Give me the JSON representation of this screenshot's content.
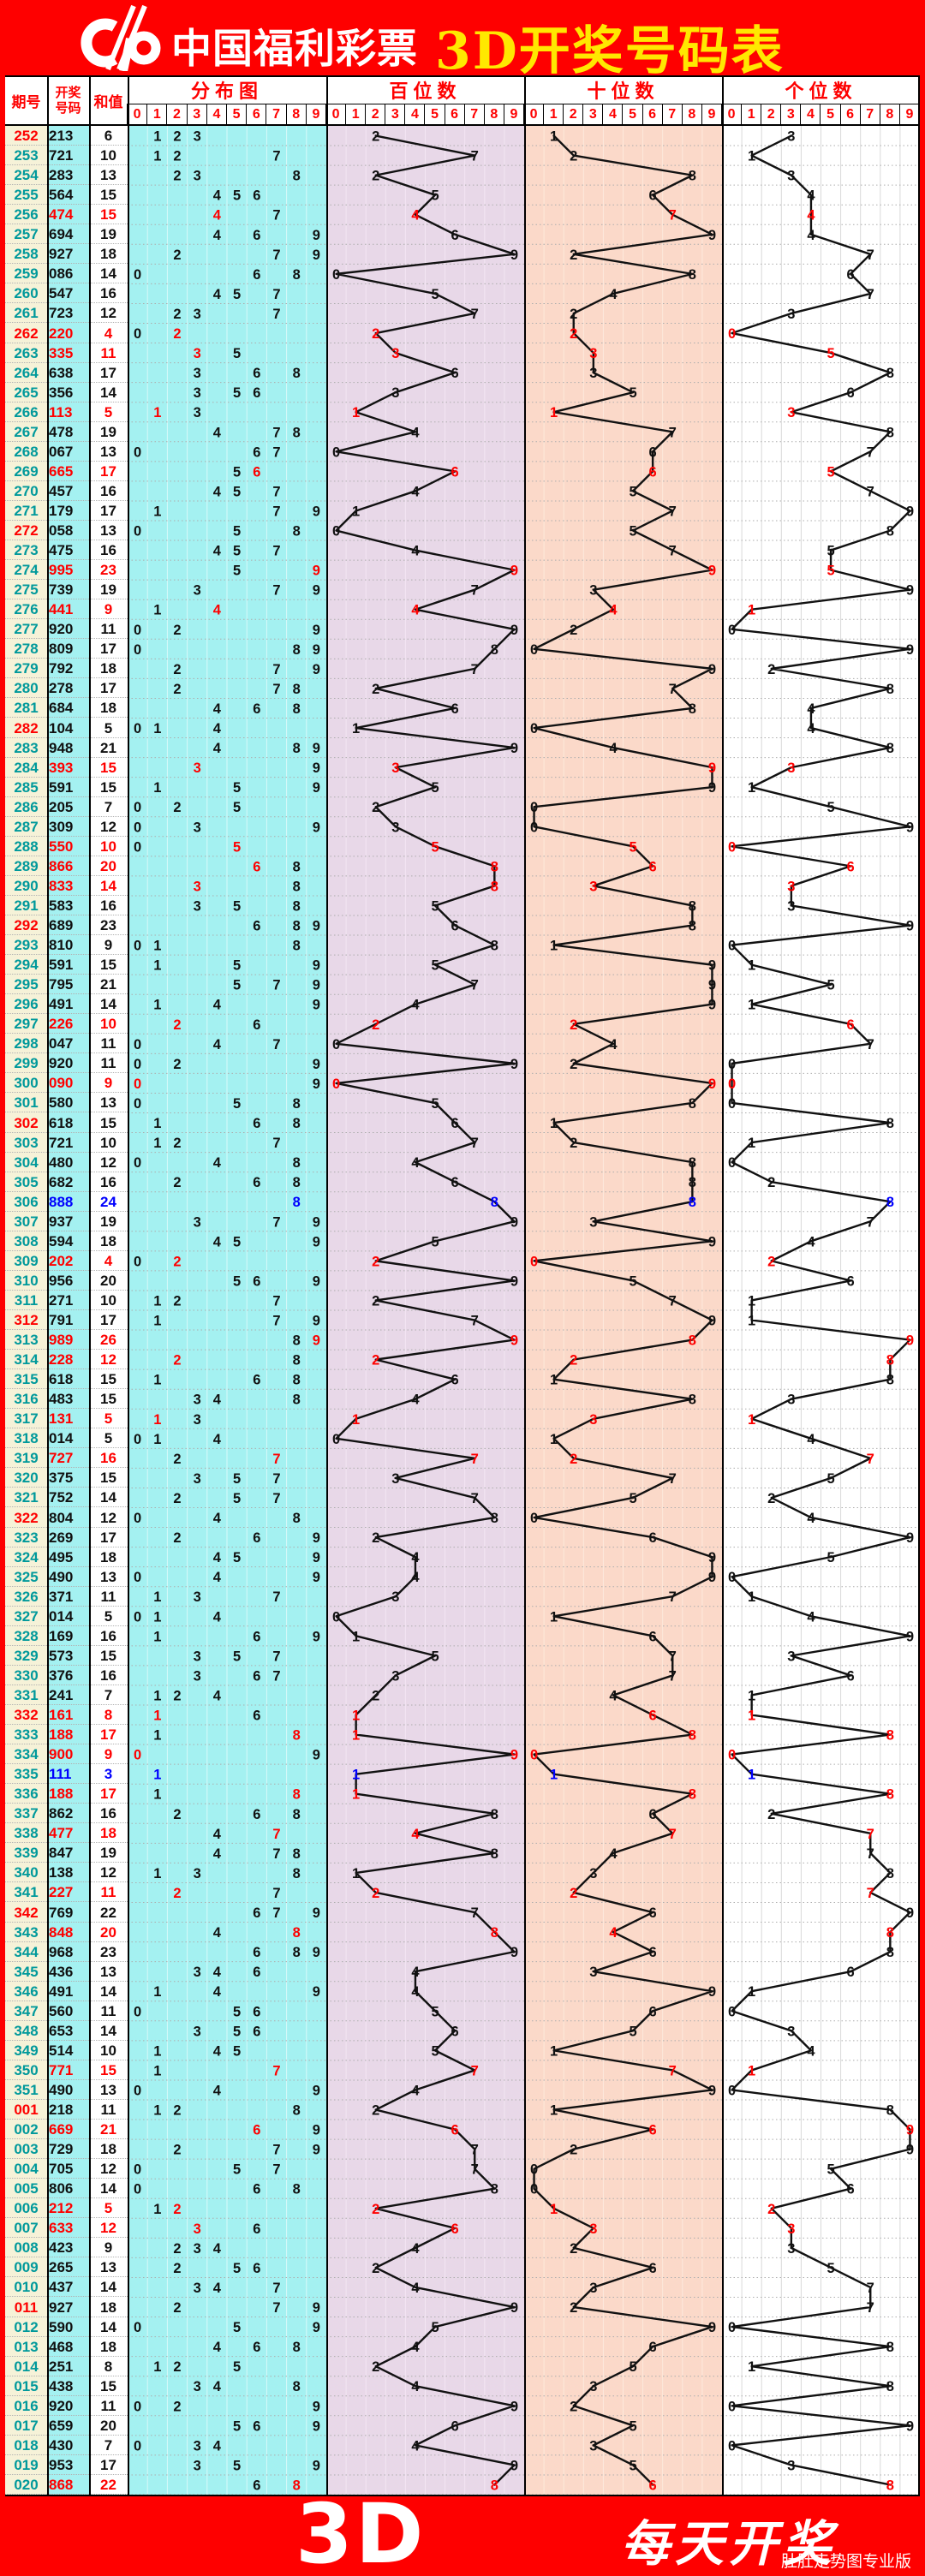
{
  "header": {
    "brand": "中国福利彩票",
    "title": "3D开奖号码表"
  },
  "table_header": {
    "period": "期号",
    "number": "开奖\n号码",
    "sum": "和值",
    "distribution": "分布图",
    "hundreds": "百位数",
    "tens": "十位数",
    "units": "个位数",
    "digit_scale": [
      "0",
      "1",
      "2",
      "3",
      "4",
      "5",
      "6",
      "7",
      "8",
      "9"
    ]
  },
  "footer": {
    "logo": "3D",
    "slogan": "每天开奖",
    "watermark": "肚肚走势图专业版"
  },
  "colors": {
    "frame_red": "#fe0000",
    "title_yellow": "#ffe800",
    "header_text_red": "#fe0000",
    "period_teal": "#00999b",
    "pair_red": "#fe0000",
    "triple_blue": "#0000fe",
    "text_black": "#111111",
    "period_col_bg": "#f6f2d8",
    "number_col_bg": "#a4f1f1",
    "distribution_bg": "#a4f1f1",
    "hundreds_bg": "#e8d8e8",
    "tens_bg": "#fbd9c9",
    "units_bg": "#ffffff",
    "trend_line": "#111111",
    "grid_dots": "#adadad"
  },
  "chart_data": {
    "type": "table",
    "description": "福彩3D开奖走势表：每期期号、开奖号码、和值；分布图及百位/十位/个位走势（0-9）。红色=对子，蓝色=豹子，每10期期号为红色。",
    "digit_axis": [
      0,
      1,
      2,
      3,
      4,
      5,
      6,
      7,
      8,
      9
    ],
    "rows": [
      {
        "p": "252",
        "n": "213",
        "s": 6
      },
      {
        "p": "253",
        "n": "721",
        "s": 10
      },
      {
        "p": "254",
        "n": "283",
        "s": 13
      },
      {
        "p": "255",
        "n": "564",
        "s": 15
      },
      {
        "p": "256",
        "n": "474",
        "s": 15
      },
      {
        "p": "257",
        "n": "694",
        "s": 19
      },
      {
        "p": "258",
        "n": "927",
        "s": 18
      },
      {
        "p": "259",
        "n": "086",
        "s": 14
      },
      {
        "p": "260",
        "n": "547",
        "s": 16
      },
      {
        "p": "261",
        "n": "723",
        "s": 12
      },
      {
        "p": "262",
        "n": "220",
        "s": 4
      },
      {
        "p": "263",
        "n": "335",
        "s": 11
      },
      {
        "p": "264",
        "n": "638",
        "s": 17
      },
      {
        "p": "265",
        "n": "356",
        "s": 14
      },
      {
        "p": "266",
        "n": "113",
        "s": 5
      },
      {
        "p": "267",
        "n": "478",
        "s": 19
      },
      {
        "p": "268",
        "n": "067",
        "s": 13
      },
      {
        "p": "269",
        "n": "665",
        "s": 17
      },
      {
        "p": "270",
        "n": "457",
        "s": 16
      },
      {
        "p": "271",
        "n": "179",
        "s": 17
      },
      {
        "p": "272",
        "n": "058",
        "s": 13
      },
      {
        "p": "273",
        "n": "475",
        "s": 16
      },
      {
        "p": "274",
        "n": "995",
        "s": 23
      },
      {
        "p": "275",
        "n": "739",
        "s": 19
      },
      {
        "p": "276",
        "n": "441",
        "s": 9
      },
      {
        "p": "277",
        "n": "920",
        "s": 11
      },
      {
        "p": "278",
        "n": "809",
        "s": 17
      },
      {
        "p": "279",
        "n": "792",
        "s": 18
      },
      {
        "p": "280",
        "n": "278",
        "s": 17
      },
      {
        "p": "281",
        "n": "684",
        "s": 18
      },
      {
        "p": "282",
        "n": "104",
        "s": 5
      },
      {
        "p": "283",
        "n": "948",
        "s": 21
      },
      {
        "p": "284",
        "n": "393",
        "s": 15
      },
      {
        "p": "285",
        "n": "591",
        "s": 15
      },
      {
        "p": "286",
        "n": "205",
        "s": 7
      },
      {
        "p": "287",
        "n": "309",
        "s": 12
      },
      {
        "p": "288",
        "n": "550",
        "s": 10
      },
      {
        "p": "289",
        "n": "866",
        "s": 20
      },
      {
        "p": "290",
        "n": "833",
        "s": 14
      },
      {
        "p": "291",
        "n": "583",
        "s": 16
      },
      {
        "p": "292",
        "n": "689",
        "s": 23
      },
      {
        "p": "293",
        "n": "810",
        "s": 9
      },
      {
        "p": "294",
        "n": "591",
        "s": 15
      },
      {
        "p": "295",
        "n": "795",
        "s": 21
      },
      {
        "p": "296",
        "n": "491",
        "s": 14
      },
      {
        "p": "297",
        "n": "226",
        "s": 10
      },
      {
        "p": "298",
        "n": "047",
        "s": 11
      },
      {
        "p": "299",
        "n": "920",
        "s": 11
      },
      {
        "p": "300",
        "n": "090",
        "s": 9
      },
      {
        "p": "301",
        "n": "580",
        "s": 13
      },
      {
        "p": "302",
        "n": "618",
        "s": 15
      },
      {
        "p": "303",
        "n": "721",
        "s": 10
      },
      {
        "p": "304",
        "n": "480",
        "s": 12
      },
      {
        "p": "305",
        "n": "682",
        "s": 16
      },
      {
        "p": "306",
        "n": "888",
        "s": 24
      },
      {
        "p": "307",
        "n": "937",
        "s": 19
      },
      {
        "p": "308",
        "n": "594",
        "s": 18
      },
      {
        "p": "309",
        "n": "202",
        "s": 4
      },
      {
        "p": "310",
        "n": "956",
        "s": 20
      },
      {
        "p": "311",
        "n": "271",
        "s": 10
      },
      {
        "p": "312",
        "n": "791",
        "s": 17
      },
      {
        "p": "313",
        "n": "989",
        "s": 26
      },
      {
        "p": "314",
        "n": "228",
        "s": 12
      },
      {
        "p": "315",
        "n": "618",
        "s": 15
      },
      {
        "p": "316",
        "n": "483",
        "s": 15
      },
      {
        "p": "317",
        "n": "131",
        "s": 5
      },
      {
        "p": "318",
        "n": "014",
        "s": 5
      },
      {
        "p": "319",
        "n": "727",
        "s": 16
      },
      {
        "p": "320",
        "n": "375",
        "s": 15
      },
      {
        "p": "321",
        "n": "752",
        "s": 14
      },
      {
        "p": "322",
        "n": "804",
        "s": 12
      },
      {
        "p": "323",
        "n": "269",
        "s": 17
      },
      {
        "p": "324",
        "n": "495",
        "s": 18
      },
      {
        "p": "325",
        "n": "490",
        "s": 13
      },
      {
        "p": "326",
        "n": "371",
        "s": 11
      },
      {
        "p": "327",
        "n": "014",
        "s": 5
      },
      {
        "p": "328",
        "n": "169",
        "s": 16
      },
      {
        "p": "329",
        "n": "573",
        "s": 15
      },
      {
        "p": "330",
        "n": "376",
        "s": 16
      },
      {
        "p": "331",
        "n": "241",
        "s": 7
      },
      {
        "p": "332",
        "n": "161",
        "s": 8
      },
      {
        "p": "333",
        "n": "188",
        "s": 17
      },
      {
        "p": "334",
        "n": "900",
        "s": 9
      },
      {
        "p": "335",
        "n": "111",
        "s": 3
      },
      {
        "p": "336",
        "n": "188",
        "s": 17
      },
      {
        "p": "337",
        "n": "862",
        "s": 16
      },
      {
        "p": "338",
        "n": "477",
        "s": 18
      },
      {
        "p": "339",
        "n": "847",
        "s": 19
      },
      {
        "p": "340",
        "n": "138",
        "s": 12
      },
      {
        "p": "341",
        "n": "227",
        "s": 11
      },
      {
        "p": "342",
        "n": "769",
        "s": 22
      },
      {
        "p": "343",
        "n": "848",
        "s": 20
      },
      {
        "p": "344",
        "n": "968",
        "s": 23
      },
      {
        "p": "345",
        "n": "436",
        "s": 13
      },
      {
        "p": "346",
        "n": "491",
        "s": 14
      },
      {
        "p": "347",
        "n": "560",
        "s": 11
      },
      {
        "p": "348",
        "n": "653",
        "s": 14
      },
      {
        "p": "349",
        "n": "514",
        "s": 10
      },
      {
        "p": "350",
        "n": "771",
        "s": 15
      },
      {
        "p": "351",
        "n": "490",
        "s": 13
      },
      {
        "p": "001",
        "n": "218",
        "s": 11
      },
      {
        "p": "002",
        "n": "669",
        "s": 21
      },
      {
        "p": "003",
        "n": "729",
        "s": 18
      },
      {
        "p": "004",
        "n": "705",
        "s": 12
      },
      {
        "p": "005",
        "n": "806",
        "s": 14
      },
      {
        "p": "006",
        "n": "212",
        "s": 5
      },
      {
        "p": "007",
        "n": "633",
        "s": 12
      },
      {
        "p": "008",
        "n": "423",
        "s": 9
      },
      {
        "p": "009",
        "n": "265",
        "s": 13
      },
      {
        "p": "010",
        "n": "437",
        "s": 14
      },
      {
        "p": "011",
        "n": "927",
        "s": 18
      },
      {
        "p": "012",
        "n": "590",
        "s": 14
      },
      {
        "p": "013",
        "n": "468",
        "s": 18
      },
      {
        "p": "014",
        "n": "251",
        "s": 8
      },
      {
        "p": "015",
        "n": "438",
        "s": 15
      },
      {
        "p": "016",
        "n": "920",
        "s": 11
      },
      {
        "p": "017",
        "n": "659",
        "s": 20
      },
      {
        "p": "018",
        "n": "430",
        "s": 7
      },
      {
        "p": "019",
        "n": "953",
        "s": 17
      },
      {
        "p": "020",
        "n": "868",
        "s": 22
      }
    ]
  }
}
